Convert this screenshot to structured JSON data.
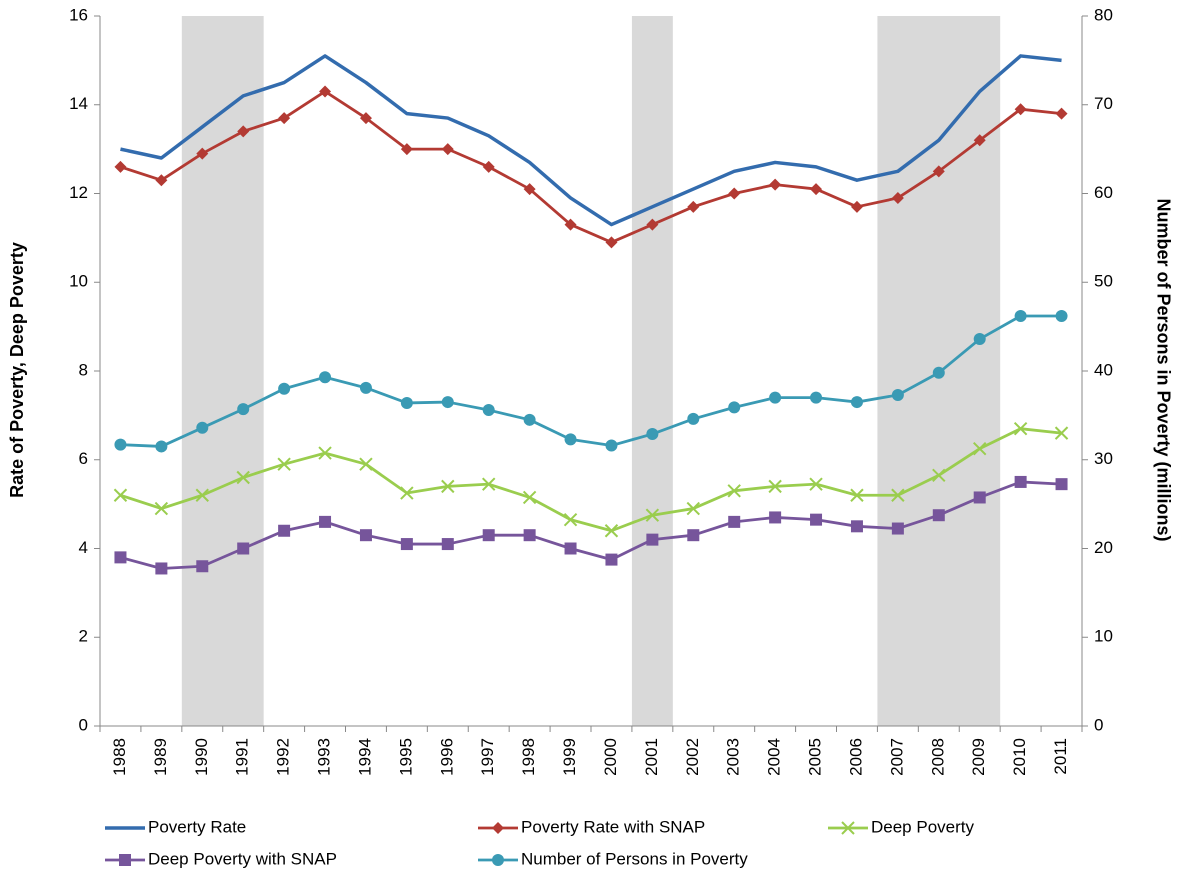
{
  "chart_data": {
    "type": "line",
    "categories": [
      "1988",
      "1989",
      "1990",
      "1991",
      "1992",
      "1993",
      "1994",
      "1995",
      "1996",
      "1997",
      "1998",
      "1999",
      "2000",
      "2001",
      "2002",
      "2003",
      "2004",
      "2005",
      "2006",
      "2007",
      "2008",
      "2009",
      "2010",
      "2011"
    ],
    "y_label": "Rate of Poverty, Deep Poverty",
    "y2_label": "Number of Persons in Poverty (millions)",
    "ylim": [
      0,
      16
    ],
    "yticks": [
      0,
      2,
      4,
      6,
      8,
      10,
      12,
      14,
      16
    ],
    "y2lim": [
      0,
      80
    ],
    "y2ticks": [
      0,
      10,
      20,
      30,
      40,
      50,
      60,
      70,
      80
    ],
    "grid": false,
    "legend": "bottom",
    "shaded_ranges": [
      [
        "1990",
        "1991"
      ],
      [
        "2001",
        "2001"
      ],
      [
        "2007",
        "2009"
      ]
    ],
    "shade_color": "#d9d9d9",
    "series": [
      {
        "name": "Poverty Rate",
        "color": "#336cae",
        "marker": "none",
        "values": [
          13.0,
          12.8,
          13.5,
          14.2,
          14.5,
          15.1,
          14.5,
          13.8,
          13.7,
          13.3,
          12.7,
          11.9,
          11.3,
          11.7,
          12.1,
          12.5,
          12.7,
          12.6,
          12.3,
          12.5,
          13.2,
          14.3,
          15.1,
          15.0
        ]
      },
      {
        "name": "Poverty Rate with SNAP",
        "color": "#b33a33",
        "marker": "diamond",
        "values": [
          12.6,
          12.3,
          12.9,
          13.4,
          13.7,
          14.3,
          13.7,
          13.0,
          13.0,
          12.6,
          12.1,
          11.3,
          10.9,
          11.3,
          11.7,
          12.0,
          12.2,
          12.1,
          11.7,
          11.9,
          12.5,
          13.2,
          13.9,
          13.8
        ]
      },
      {
        "name": "Deep Poverty",
        "color": "#9acd4e",
        "marker": "x",
        "values": [
          5.2,
          4.9,
          5.2,
          5.6,
          5.9,
          6.15,
          5.9,
          5.25,
          5.4,
          5.45,
          5.15,
          4.65,
          4.4,
          4.75,
          4.9,
          5.3,
          5.4,
          5.45,
          5.2,
          5.2,
          5.65,
          6.25,
          6.7,
          6.6
        ]
      },
      {
        "name": "Deep Poverty with SNAP",
        "color": "#76559b",
        "marker": "square",
        "values": [
          3.8,
          3.55,
          3.6,
          4.0,
          4.4,
          4.6,
          4.3,
          4.1,
          4.1,
          4.3,
          4.3,
          4.0,
          3.75,
          4.2,
          4.3,
          4.6,
          4.7,
          4.65,
          4.5,
          4.45,
          4.75,
          5.15,
          5.5,
          5.45
        ]
      },
      {
        "name": "Number of Persons in Poverty",
        "color": "#3a9ab4",
        "marker": "circle",
        "axis": "y2",
        "values": [
          31.7,
          31.5,
          33.6,
          35.7,
          38.0,
          39.3,
          38.1,
          36.4,
          36.5,
          35.6,
          34.5,
          32.3,
          31.6,
          32.9,
          34.6,
          35.9,
          37.0,
          37.0,
          36.5,
          37.3,
          39.8,
          43.6,
          46.2,
          46.2
        ]
      }
    ]
  }
}
